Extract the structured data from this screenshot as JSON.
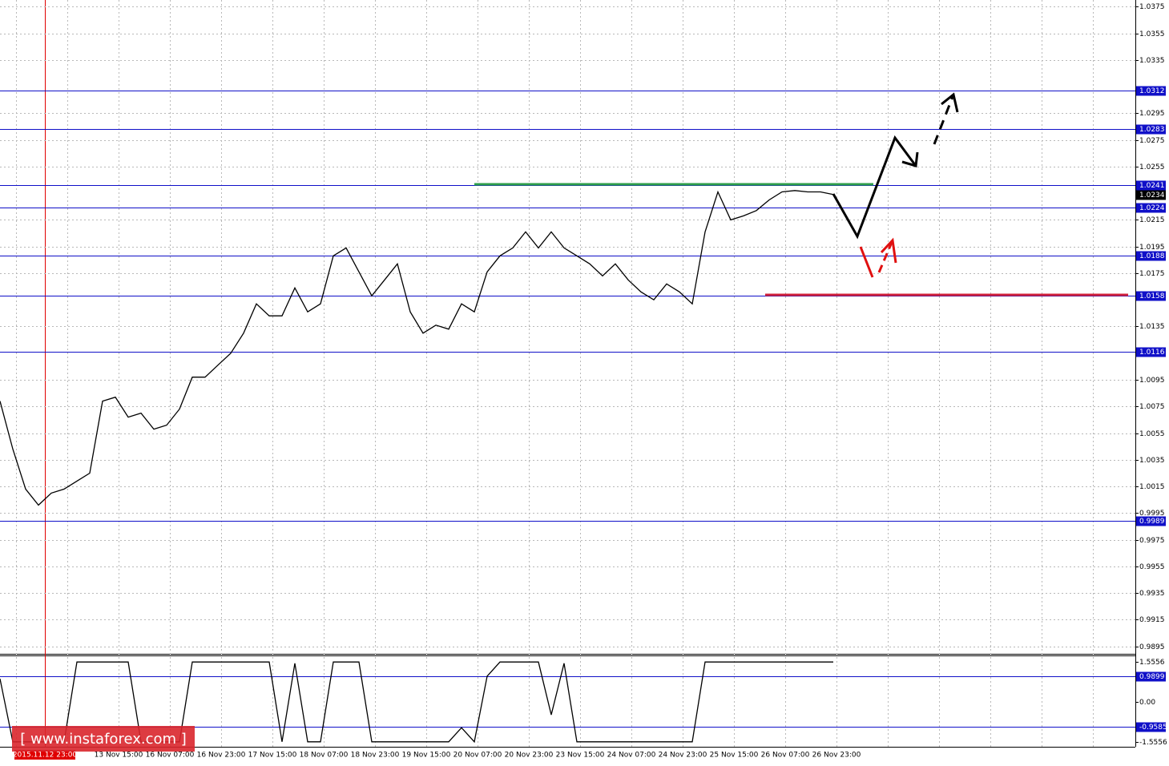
{
  "chart_data": [
    {
      "type": "line",
      "ylim": [
        0.989,
        1.038
      ],
      "yticks": [
        1.0375,
        1.0355,
        1.0335,
        1.0295,
        1.0275,
        1.0255,
        1.0215,
        1.0195,
        1.0175,
        1.0135,
        1.0095,
        1.0075,
        1.0055,
        1.0035,
        1.0015,
        0.9995,
        0.9975,
        0.9955,
        0.9935,
        0.9915,
        0.9895
      ],
      "levels": [
        1.0312,
        1.0283,
        1.0241,
        1.0224,
        1.0188,
        1.0158,
        1.0116,
        0.9989
      ],
      "current_price": 1.0234,
      "highlight_label": "2015.11.12 23:00",
      "x_labels": [
        "13 Nov 15:00",
        "16 Nov 07:00",
        "16 Nov 23:00",
        "17 Nov 15:00",
        "18 Nov 07:00",
        "18 Nov 23:00",
        "19 Nov 15:00",
        "20 Nov 07:00",
        "20 Nov 23:00",
        "23 Nov 15:00",
        "24 Nov 07:00",
        "24 Nov 23:00",
        "25 Nov 15:00",
        "26 Nov 07:00",
        "26 Nov 23:00"
      ],
      "series": [
        {
          "color": "#000000",
          "values": [
            1.0079,
            1.0043,
            1.0013,
            1.0001,
            1.001,
            1.0013,
            1.0019,
            1.0025,
            1.0079,
            1.0082,
            1.0067,
            1.007,
            1.0058,
            1.0061,
            1.0073,
            1.0097,
            1.0097,
            1.0106,
            1.0115,
            1.013,
            1.0152,
            1.0143,
            1.0143,
            1.0164,
            1.0146,
            1.0152,
            1.0188,
            1.0194,
            1.0176,
            1.0158,
            1.017,
            1.0182,
            1.0146,
            1.013,
            1.0136,
            1.0133,
            1.0152,
            1.0146,
            1.0176,
            1.0188,
            1.0194,
            1.0206,
            1.0194,
            1.0206,
            1.0194,
            1.0188,
            1.0182,
            1.0173,
            1.0182,
            1.017,
            1.0161,
            1.0155,
            1.0167,
            1.0161,
            1.0152,
            1.0206,
            1.0236,
            1.0215,
            1.0218,
            1.0222,
            1.023,
            1.0236,
            1.0237,
            1.0236,
            1.0236,
            1.0234
          ]
        }
      ]
    },
    {
      "type": "line",
      "ylim": [
        -1.742,
        1.805
      ],
      "yticks": [
        1.5556,
        {
          "value": 0,
          "label": "0.00"
        },
        -1.5556
      ],
      "levels": [
        0.9899,
        -0.9585
      ],
      "series": [
        {
          "color": "#000000",
          "values": [
            0.9,
            -1.55,
            -1.55,
            -1.55,
            -1.55,
            -1.55,
            1.55,
            1.55,
            1.55,
            1.55,
            1.55,
            -1.55,
            -1.55,
            -1.55,
            -1.55,
            1.55,
            1.55,
            1.55,
            1.55,
            1.55,
            1.55,
            1.55,
            -1.55,
            1.5,
            -1.55,
            -1.55,
            1.55,
            1.55,
            1.55,
            -1.55,
            -1.55,
            -1.55,
            -1.55,
            -1.55,
            -1.55,
            -1.55,
            -1.0,
            -1.55,
            1.0,
            1.55,
            1.55,
            1.55,
            1.55,
            -0.5,
            1.5,
            -1.55,
            -1.55,
            -1.55,
            -1.55,
            -1.55,
            -1.55,
            -1.55,
            -1.55,
            -1.55,
            -1.55,
            1.55,
            1.55,
            1.55,
            1.55,
            1.55,
            1.55,
            1.55,
            1.55,
            1.55,
            1.55,
            1.55
          ]
        }
      ]
    }
  ],
  "watermark": "[  www.instaforex.com ]"
}
